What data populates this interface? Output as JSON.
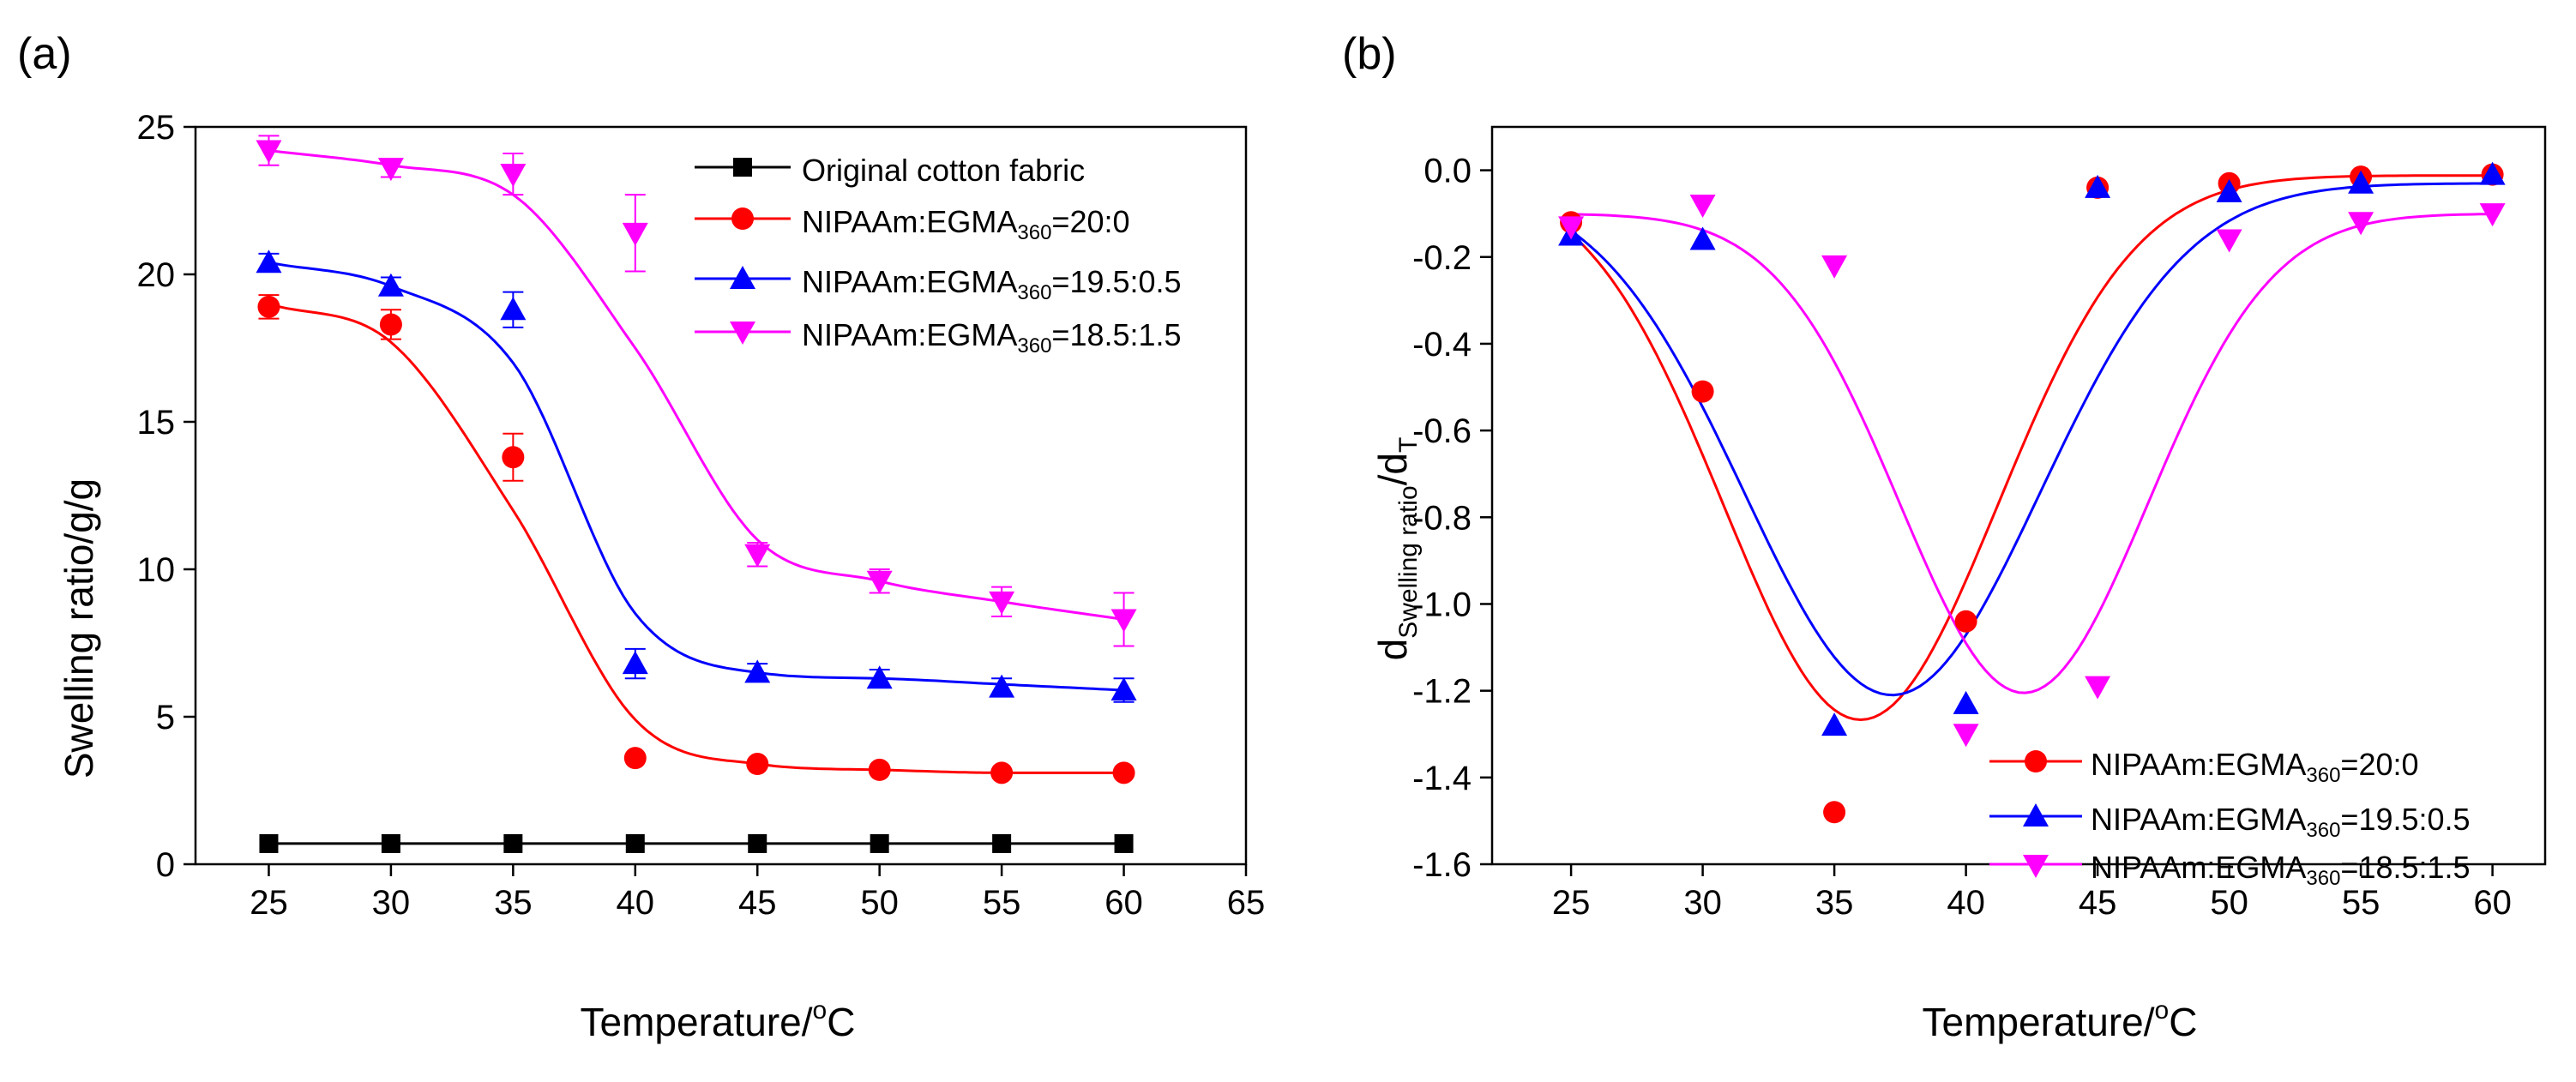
{
  "chart_data": [
    {
      "type": "scatter",
      "panel_label": "(a)",
      "xlabel": "Temperature/",
      "xlabel_unit_sup": "o",
      "xlabel_unit": "C",
      "ylabel": "Swelling ratio/g/g",
      "xlim": [
        22,
        65
      ],
      "ylim": [
        0,
        25
      ],
      "xticks": [
        25,
        30,
        35,
        40,
        45,
        50,
        55,
        60,
        65
      ],
      "yticks": [
        0,
        5,
        10,
        15,
        20,
        25
      ],
      "x": [
        25,
        30,
        35,
        40,
        45,
        50,
        55,
        60
      ],
      "legend_position": "top-right",
      "series": [
        {
          "name": "Original cotton fabric",
          "label_main": "Original cotton fabric",
          "label_sub": "",
          "label_tail": "",
          "color": "#000000",
          "marker": "square",
          "values": [
            0.7,
            0.7,
            0.7,
            0.7,
            0.7,
            0.7,
            0.7,
            0.7
          ],
          "errors": [
            0,
            0,
            0,
            0,
            0,
            0,
            0,
            0
          ],
          "fit": [
            0.7,
            0.7,
            0.7,
            0.7,
            0.7,
            0.7,
            0.7,
            0.7
          ]
        },
        {
          "name": "NIPAAm:EGMA360=20:0",
          "label_main": "NIPAAm:EGMA",
          "label_sub": "360",
          "label_tail": "=20:0",
          "color": "#ff0000",
          "marker": "circle",
          "values": [
            18.9,
            18.3,
            13.8,
            3.6,
            3.4,
            3.2,
            3.1,
            3.1
          ],
          "errors": [
            0.4,
            0.5,
            0.8,
            0,
            0.1,
            0.1,
            0.1,
            0.1
          ],
          "fit": [
            19.0,
            17.7,
            12.0,
            4.9,
            3.4,
            3.2,
            3.1,
            3.1
          ]
        },
        {
          "name": "NIPAAm:EGMA360=19.5:0.5",
          "label_main": "NIPAAm:EGMA",
          "label_sub": "360",
          "label_tail": "=19.5:0.5",
          "color": "#0000ff",
          "marker": "triangle-up",
          "values": [
            20.4,
            19.6,
            18.8,
            6.8,
            6.5,
            6.3,
            6.0,
            5.9
          ],
          "errors": [
            0.3,
            0.3,
            0.6,
            0.5,
            0.3,
            0.3,
            0.3,
            0.4
          ],
          "fit": [
            20.4,
            19.6,
            17.0,
            8.5,
            6.5,
            6.3,
            6.1,
            5.9
          ]
        },
        {
          "name": "NIPAAm:EGMA360=18.5:1.5",
          "label_main": "NIPAAm:EGMA",
          "label_sub": "360",
          "label_tail": "=18.5:1.5",
          "color": "#ff00ff",
          "marker": "triangle-down",
          "values": [
            24.2,
            23.6,
            23.4,
            21.4,
            10.5,
            9.6,
            8.9,
            8.3
          ],
          "errors": [
            0.5,
            0.3,
            0.7,
            1.3,
            0.4,
            0.4,
            0.5,
            0.9
          ],
          "fit": [
            24.2,
            23.7,
            22.7,
            17.5,
            11.0,
            9.6,
            8.9,
            8.3
          ]
        }
      ]
    },
    {
      "type": "scatter",
      "panel_label": "(b)",
      "xlabel": "Temperature/",
      "xlabel_unit_sup": "o",
      "xlabel_unit": "C",
      "ylabel_main": "d",
      "ylabel_sub": "Swelling ratio",
      "ylabel_mid": "/d",
      "ylabel_sub2": "T",
      "xlim": [
        22,
        62
      ],
      "ylim": [
        -1.6,
        0.1
      ],
      "xticks": [
        25,
        30,
        35,
        40,
        45,
        50,
        55,
        60
      ],
      "yticks": [
        0.0,
        -0.2,
        -0.4,
        -0.6,
        -0.8,
        -1.0,
        -1.2,
        -1.4,
        -1.6
      ],
      "ytick_labels": [
        "0.0",
        "-0.2",
        "-0.4",
        "-0.6",
        "-0.8",
        "-1.0",
        "-1.2",
        "-1.4",
        "-1.6"
      ],
      "x": [
        25,
        30,
        35,
        40,
        45,
        50,
        55,
        60
      ],
      "legend_position": "bottom-right",
      "series": [
        {
          "name": "NIPAAm:EGMA360=20:0",
          "label_main": "NIPAAm:EGMA",
          "label_sub": "360",
          "label_tail": "=20:0",
          "color": "#ff0000",
          "marker": "circle",
          "values": [
            -0.12,
            -0.51,
            -1.48,
            -1.04,
            -0.04,
            -0.03,
            -0.015,
            -0.01
          ],
          "fit": {
            "offset": -0.012,
            "amplitude": -1.255,
            "center": 36.0,
            "width": 5.2
          }
        },
        {
          "name": "NIPAAm:EGMA360=19.5:0.5",
          "label_main": "NIPAAm:EGMA",
          "label_sub": "360",
          "label_tail": "=19.5:0.5",
          "color": "#0000ff",
          "marker": "triangle-up",
          "values": [
            -0.15,
            -0.16,
            -1.28,
            -1.23,
            -0.04,
            -0.05,
            -0.03,
            -0.01
          ],
          "fit": {
            "offset": -0.03,
            "amplitude": -1.18,
            "center": 37.2,
            "width": 5.6
          }
        },
        {
          "name": "NIPAAm:EGMA360=18.5:1.5",
          "label_main": "NIPAAm:EGMA",
          "label_sub": "360",
          "label_tail": "=18.5:1.5",
          "color": "#ff00ff",
          "marker": "triangle-down",
          "values": [
            -0.13,
            -0.08,
            -0.22,
            -1.3,
            -1.19,
            -0.16,
            -0.12,
            -0.1
          ],
          "fit": {
            "offset": -0.1,
            "amplitude": -1.105,
            "center": 42.2,
            "width": 4.7
          }
        }
      ]
    }
  ]
}
